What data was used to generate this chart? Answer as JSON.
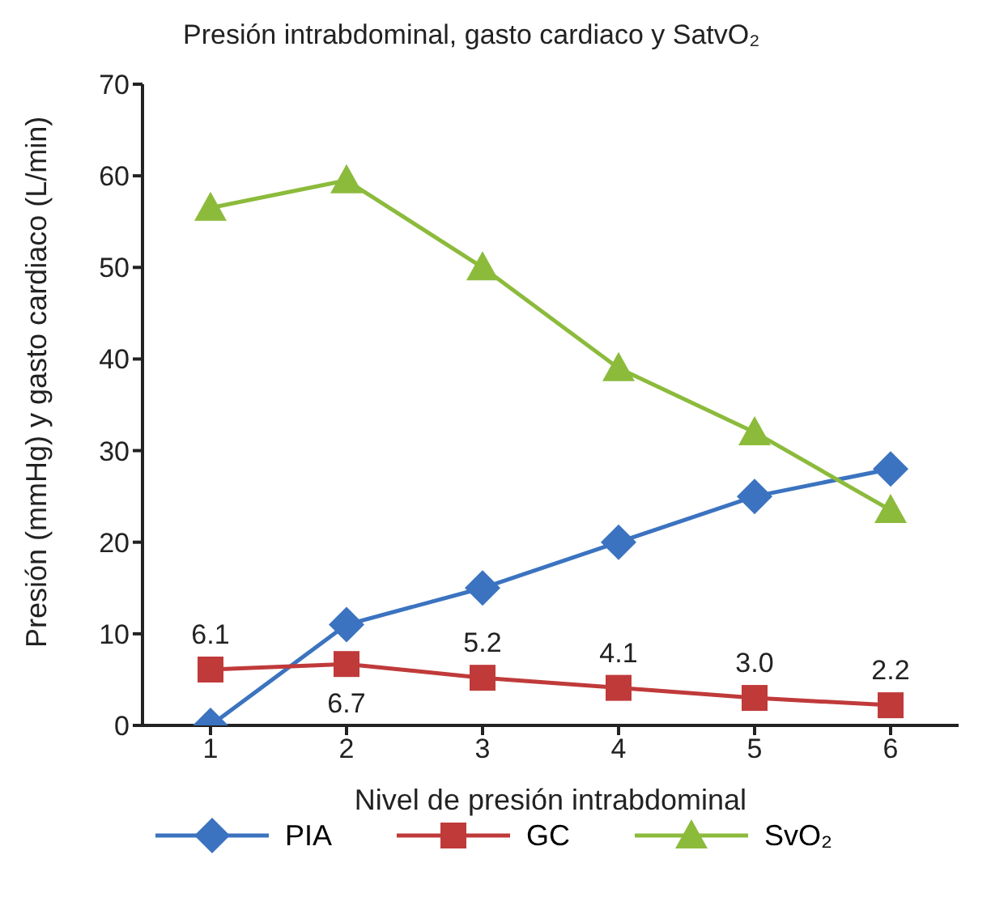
{
  "chart_data": {
    "type": "line",
    "title": "Presión intrabdominal, gasto cardiaco y SatvO₂",
    "xlabel": "Nivel de presión intrabdominal",
    "ylabel": "Presión (mmHg) y gasto cardiaco (L/min)",
    "categories": [
      "1",
      "2",
      "3",
      "4",
      "5",
      "6"
    ],
    "series": [
      {
        "name": "PIA",
        "color": "#3b73c0",
        "marker": "diamond",
        "values": [
          0,
          11,
          15,
          20,
          25,
          28
        ]
      },
      {
        "name": "GC",
        "color": "#c03a3a",
        "marker": "square",
        "values": [
          6.1,
          6.7,
          5.2,
          4.1,
          3.0,
          2.2
        ],
        "value_labels": [
          "6.1",
          "6.7",
          "5.2",
          "4.1",
          "3.0",
          "2.2"
        ]
      },
      {
        "name": "SvO₂",
        "color": "#8cbb3c",
        "marker": "triangle",
        "values": [
          56.5,
          59.5,
          50,
          39,
          32,
          23.5
        ]
      }
    ],
    "ylim": [
      0,
      70
    ],
    "yticks": [
      0,
      10,
      20,
      30,
      40,
      50,
      60,
      70
    ],
    "grid": false,
    "legend": "bottom"
  }
}
